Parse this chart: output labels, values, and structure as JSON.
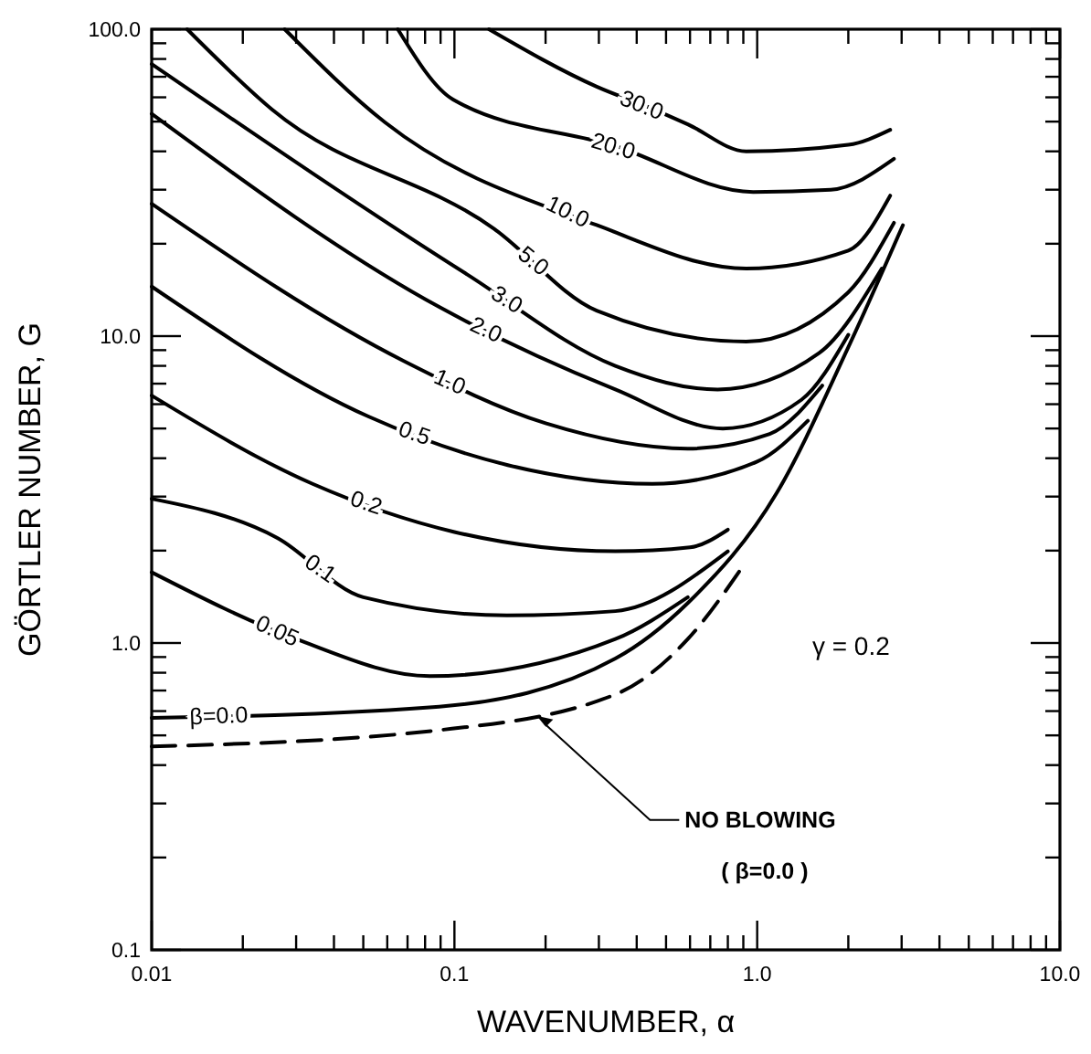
{
  "chart_data": {
    "type": "line",
    "log": "xy",
    "xlabel": "WAVENUMBER, α",
    "ylabel": "GÖRTLER NUMBER, G",
    "xlim": [
      0.01,
      10
    ],
    "ylim": [
      0.1,
      100
    ],
    "xticks": [
      {
        "value": 0.01,
        "label": "0.01"
      },
      {
        "value": 0.02,
        "label": null
      },
      {
        "value": 0.03,
        "label": null
      },
      {
        "value": 0.04,
        "label": null
      },
      {
        "value": 0.05,
        "label": null
      },
      {
        "value": 0.06,
        "label": null
      },
      {
        "value": 0.07,
        "label": null
      },
      {
        "value": 0.08,
        "label": null
      },
      {
        "value": 0.09,
        "label": null
      },
      {
        "value": 0.1,
        "label": "0.1"
      },
      {
        "value": 0.2,
        "label": null
      },
      {
        "value": 0.3,
        "label": null
      },
      {
        "value": 0.4,
        "label": null
      },
      {
        "value": 0.5,
        "label": null
      },
      {
        "value": 0.6,
        "label": null
      },
      {
        "value": 0.7,
        "label": null
      },
      {
        "value": 0.8,
        "label": null
      },
      {
        "value": 0.9,
        "label": null
      },
      {
        "value": 1,
        "label": "1.0"
      },
      {
        "value": 2,
        "label": null
      },
      {
        "value": 3,
        "label": null
      },
      {
        "value": 4,
        "label": null
      },
      {
        "value": 5,
        "label": null
      },
      {
        "value": 6,
        "label": null
      },
      {
        "value": 7,
        "label": null
      },
      {
        "value": 8,
        "label": null
      },
      {
        "value": 9,
        "label": null
      },
      {
        "value": 10,
        "label": "10.0"
      }
    ],
    "yticks": [
      {
        "value": 0.1,
        "label": "0.1"
      },
      {
        "value": 0.2,
        "label": null
      },
      {
        "value": 0.3,
        "label": null
      },
      {
        "value": 0.4,
        "label": null
      },
      {
        "value": 0.5,
        "label": null
      },
      {
        "value": 0.6,
        "label": null
      },
      {
        "value": 0.7,
        "label": null
      },
      {
        "value": 0.8,
        "label": null
      },
      {
        "value": 0.9,
        "label": null
      },
      {
        "value": 1,
        "label": "1.0"
      },
      {
        "value": 2,
        "label": null
      },
      {
        "value": 3,
        "label": null
      },
      {
        "value": 4,
        "label": null
      },
      {
        "value": 5,
        "label": null
      },
      {
        "value": 6,
        "label": null
      },
      {
        "value": 7,
        "label": null
      },
      {
        "value": 8,
        "label": null
      },
      {
        "value": 9,
        "label": null
      },
      {
        "value": 10,
        "label": "10.0"
      },
      {
        "value": 20,
        "label": null
      },
      {
        "value": 30,
        "label": null
      },
      {
        "value": 40,
        "label": null
      },
      {
        "value": 50,
        "label": null
      },
      {
        "value": 60,
        "label": null
      },
      {
        "value": 70,
        "label": null
      },
      {
        "value": 80,
        "label": null
      },
      {
        "value": 90,
        "label": null
      },
      {
        "value": 100,
        "label": "100.0"
      }
    ],
    "series": [
      {
        "name": "30.0",
        "color": "#000000",
        "line_style": "solid",
        "x": [
          0.13,
          0.295,
          0.458,
          0.59,
          0.92,
          2.0,
          2.75
        ],
        "values": [
          100,
          65,
          54.7,
          49,
          40,
          42,
          47
        ]
      },
      {
        "name": "20.0",
        "color": "#000000",
        "line_style": "solid",
        "x": [
          0.065,
          0.099,
          0.34,
          0.97,
          1.75,
          2.83
        ],
        "values": [
          100,
          59,
          41.6,
          29.5,
          30,
          37.8
        ]
      },
      {
        "name": "10.0",
        "color": "#000000",
        "line_style": "solid",
        "x": [
          0.0275,
          0.059,
          0.295,
          0.92,
          2.0,
          2.75
        ],
        "values": [
          100,
          49.7,
          23,
          16.6,
          19,
          28.7
        ]
      },
      {
        "name": "5.0",
        "color": "#000000",
        "line_style": "solid",
        "x": [
          0.0131,
          0.025,
          0.135,
          0.295,
          0.92,
          2.0,
          2.83
        ],
        "values": [
          100,
          54.7,
          22.4,
          12.1,
          9.6,
          13.9,
          23.4
        ]
      },
      {
        "name": "3.0",
        "color": "#000000",
        "line_style": "solid",
        "x": [
          0.01,
          0.11,
          0.34,
          0.74,
          1.6,
          2.58
        ],
        "values": [
          77,
          15.9,
          8.0,
          6.7,
          8.8,
          16.6
        ]
      },
      {
        "name": "2.0",
        "color": "#000000",
        "line_style": "solid",
        "x": [
          0.01,
          0.0896,
          0.34,
          0.77,
          1.4,
          2.0
        ],
        "values": [
          53,
          12.4,
          6.7,
          5.0,
          6.2,
          10.1
        ]
      },
      {
        "name": "1.0",
        "color": "#000000",
        "line_style": "solid",
        "x": [
          0.01,
          0.068,
          0.2,
          0.59,
          1.1,
          1.64
        ],
        "values": [
          27,
          8.3,
          5.2,
          4.3,
          4.8,
          6.9
        ]
      },
      {
        "name": "0.5",
        "color": "#000000",
        "line_style": "solid",
        "x": [
          0.01,
          0.052,
          0.15,
          0.45,
          1.0,
          1.47
        ],
        "values": [
          14.5,
          5.47,
          3.8,
          3.3,
          3.9,
          5.3
        ]
      },
      {
        "name": "0.2",
        "color": "#000000",
        "line_style": "solid",
        "x": [
          0.01,
          0.034,
          0.1,
          0.34,
          0.6,
          0.8
        ],
        "values": [
          6.4,
          3.3,
          2.3,
          1.99,
          2.05,
          2.34
        ]
      },
      {
        "name": "0.1",
        "color": "#000000",
        "line_style": "solid",
        "x": [
          0.01,
          0.026,
          0.05,
          0.149,
          0.34,
          0.8
        ],
        "values": [
          2.95,
          2.2,
          1.41,
          1.23,
          1.27,
          1.99
        ]
      },
      {
        "name": "0.05",
        "color": "#000000",
        "line_style": "solid",
        "x": [
          0.01,
          0.03,
          0.083,
          0.34,
          0.59
        ],
        "values": [
          1.7,
          1.03,
          0.78,
          1.03,
          1.41
        ]
      },
      {
        "name": "β=0.0",
        "color": "#000000",
        "line_style": "solid",
        "x": [
          0.01,
          0.089,
          0.34,
          0.59,
          1.16,
          2.0,
          3.03
        ],
        "values": [
          0.57,
          0.62,
          0.89,
          1.35,
          3.08,
          9.2,
          23
        ]
      },
      {
        "name": "NO BLOWING\n( β=0.0 )",
        "color": "#000000",
        "line_style": "dashed",
        "x": [
          0.01,
          0.089,
          0.34,
          0.59,
          0.88
        ],
        "values": [
          0.46,
          0.52,
          0.68,
          1.03,
          1.73
        ]
      }
    ],
    "annotations": [
      "γ = 0.2"
    ]
  }
}
